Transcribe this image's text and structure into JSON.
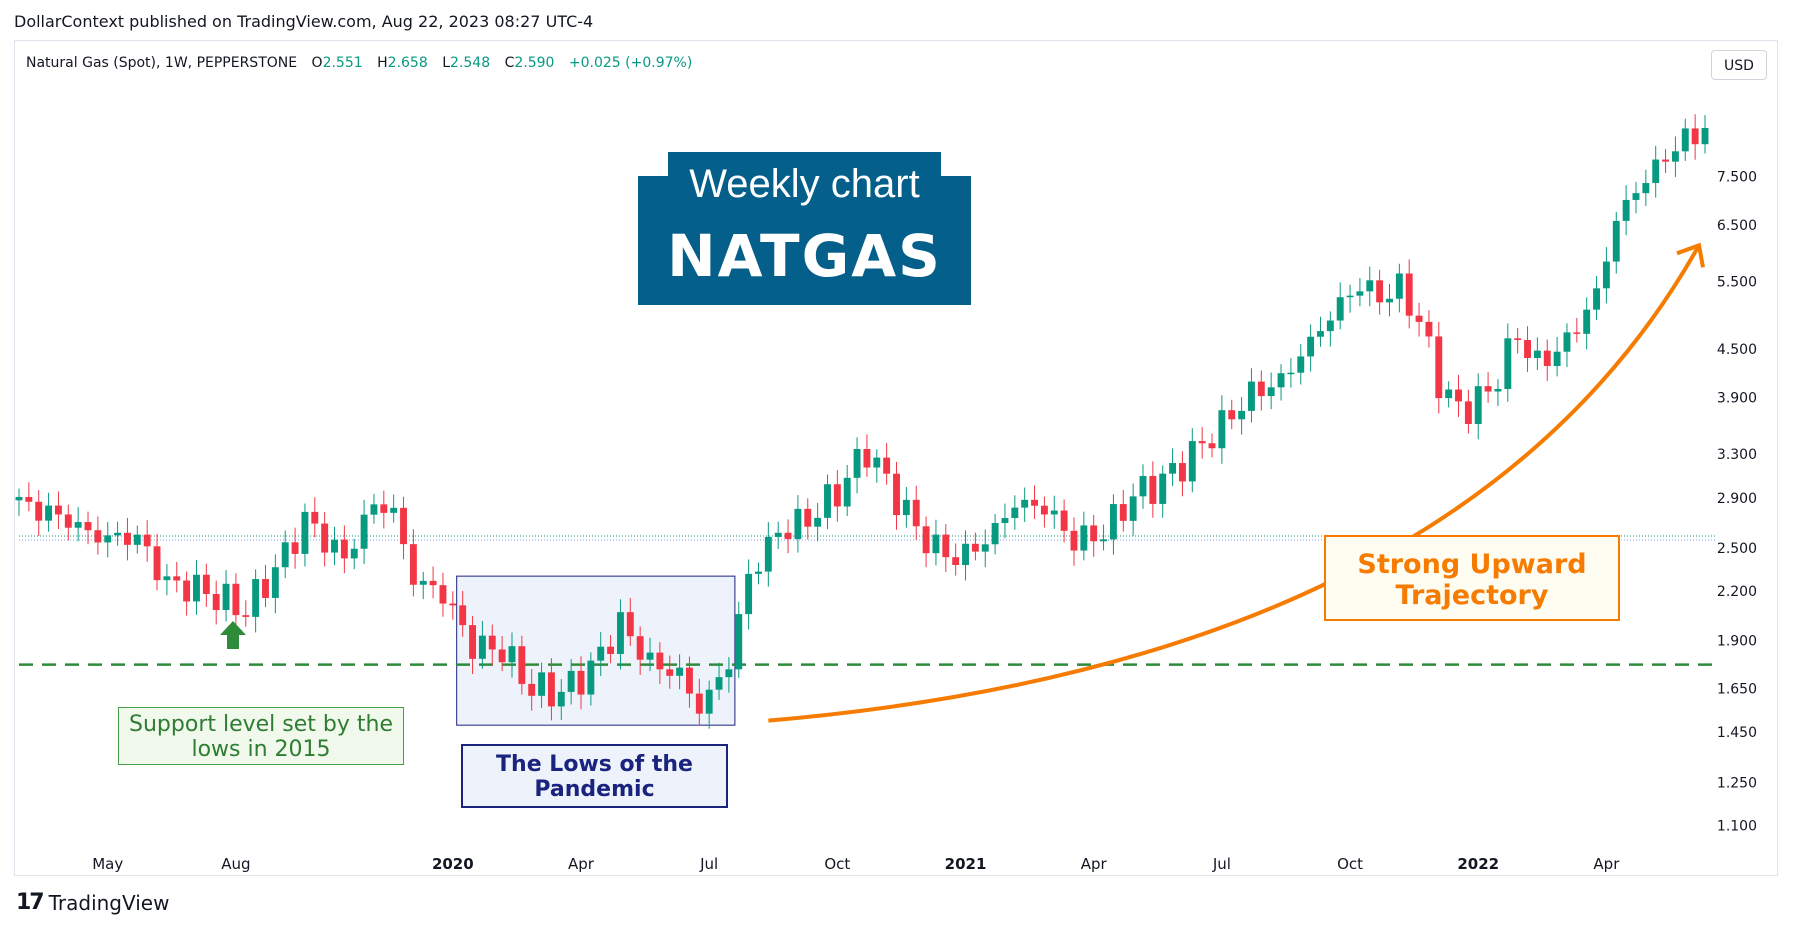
{
  "header": {
    "published_text": "DollarContext published on TradingView.com, Aug 22, 2023 08:27 UTC-4"
  },
  "legend": {
    "symbol": "Natural Gas (Spot), 1W, PEPPERSTONE",
    "o_label": "O",
    "o_value": "2.551",
    "h_label": "H",
    "h_value": "2.658",
    "l_label": "L",
    "l_value": "2.548",
    "c_label": "C",
    "c_value": "2.590",
    "change": "+0.025 (+0.97%)"
  },
  "currency": "USD",
  "title_box": {
    "line1": "Weekly chart",
    "line2": "NATGAS"
  },
  "notes": {
    "support": "Support level set by the lows in 2015",
    "pandemic": "The Lows of the Pandemic",
    "trend": "Strong Upward Trajectory"
  },
  "footer": {
    "brand": "TradingView",
    "brand_mark": "17"
  },
  "colors": {
    "up": "#089981",
    "down": "#f23645",
    "support_line": "#2e8b3a",
    "trend_arrow": "#f57c00",
    "title_bg": "#045f8a",
    "pandemic_fill": "#eef3fb",
    "pandemic_border": "#1a237e"
  },
  "chart_data": {
    "type": "candlestick",
    "y_scale": "log",
    "ylim": [
      1.02,
      11.2
    ],
    "y_ticks": [
      "7.500",
      "6.500",
      "5.500",
      "4.500",
      "3.900",
      "3.300",
      "2.900",
      "2.500",
      "2.200",
      "1.900",
      "1.650",
      "1.450",
      "1.250",
      "1.100"
    ],
    "x_ticks": [
      {
        "label": "May",
        "week": 9,
        "bold": false
      },
      {
        "label": "Aug",
        "week": 22,
        "bold": false
      },
      {
        "label": "2020",
        "week": 44,
        "bold": true
      },
      {
        "label": "Apr",
        "week": 57,
        "bold": false
      },
      {
        "label": "Jul",
        "week": 70,
        "bold": false
      },
      {
        "label": "Oct",
        "week": 83,
        "bold": false
      },
      {
        "label": "2021",
        "week": 96,
        "bold": true
      },
      {
        "label": "Apr",
        "week": 109,
        "bold": false
      },
      {
        "label": "Jul",
        "week": 122,
        "bold": false
      },
      {
        "label": "Oct",
        "week": 135,
        "bold": false
      },
      {
        "label": "2022",
        "week": 148,
        "bold": true
      },
      {
        "label": "Apr",
        "week": 161,
        "bold": false
      }
    ],
    "support_level": 1.77,
    "current_price_level": 2.59,
    "pandemic_range": {
      "week_start": 45,
      "week_end": 72,
      "high": 2.3,
      "low": 1.48
    },
    "trend_arrow": {
      "from": {
        "week": 76,
        "price": 1.5
      },
      "to": {
        "week": 171,
        "price": 5.6
      }
    },
    "ohlc_anchors": [
      {
        "week": 0,
        "close": 2.85
      },
      {
        "week": 4,
        "close": 2.75
      },
      {
        "week": 8,
        "close": 2.58
      },
      {
        "week": 12,
        "close": 2.58
      },
      {
        "week": 15,
        "close": 2.25
      },
      {
        "week": 18,
        "close": 2.22
      },
      {
        "week": 23,
        "close": 2.08
      },
      {
        "week": 27,
        "close": 2.45
      },
      {
        "week": 29,
        "close": 2.72
      },
      {
        "week": 33,
        "close": 2.42
      },
      {
        "week": 36,
        "close": 2.85
      },
      {
        "week": 38,
        "close": 2.78
      },
      {
        "week": 40,
        "close": 2.28
      },
      {
        "week": 43,
        "close": 2.18
      },
      {
        "week": 46,
        "close": 1.87
      },
      {
        "week": 49,
        "close": 1.85
      },
      {
        "week": 52,
        "close": 1.65
      },
      {
        "week": 55,
        "close": 1.63
      },
      {
        "week": 58,
        "close": 1.75
      },
      {
        "week": 61,
        "close": 2.0
      },
      {
        "week": 64,
        "close": 1.78
      },
      {
        "week": 67,
        "close": 1.72
      },
      {
        "week": 69,
        "close": 1.55
      },
      {
        "week": 72,
        "close": 1.78
      },
      {
        "week": 74,
        "close": 2.3
      },
      {
        "week": 77,
        "close": 2.62
      },
      {
        "week": 80,
        "close": 2.72
      },
      {
        "week": 83,
        "close": 2.95
      },
      {
        "week": 86,
        "close": 3.35
      },
      {
        "week": 89,
        "close": 2.9
      },
      {
        "week": 92,
        "close": 2.55
      },
      {
        "week": 95,
        "close": 2.42
      },
      {
        "week": 98,
        "close": 2.55
      },
      {
        "week": 101,
        "close": 2.85
      },
      {
        "week": 104,
        "close": 2.82
      },
      {
        "week": 107,
        "close": 2.55
      },
      {
        "week": 110,
        "close": 2.62
      },
      {
        "week": 113,
        "close": 2.92
      },
      {
        "week": 116,
        "close": 3.05
      },
      {
        "week": 119,
        "close": 3.3
      },
      {
        "week": 122,
        "close": 3.6
      },
      {
        "week": 125,
        "close": 3.95
      },
      {
        "week": 128,
        "close": 4.1
      },
      {
        "week": 131,
        "close": 4.6
      },
      {
        "week": 134,
        "close": 5.15
      },
      {
        "week": 136,
        "close": 5.45
      },
      {
        "week": 138,
        "close": 5.25
      },
      {
        "week": 140,
        "close": 5.4
      },
      {
        "week": 142,
        "close": 4.9
      },
      {
        "week": 144,
        "close": 4.1
      },
      {
        "week": 146,
        "close": 3.75
      },
      {
        "week": 149,
        "close": 3.95
      },
      {
        "week": 152,
        "close": 4.7
      },
      {
        "week": 154,
        "close": 4.3
      },
      {
        "week": 157,
        "close": 4.6
      },
      {
        "week": 160,
        "close": 5.3
      },
      {
        "week": 162,
        "close": 6.6
      },
      {
        "week": 164,
        "close": 7.2
      },
      {
        "week": 166,
        "close": 7.7
      },
      {
        "week": 168,
        "close": 8.2
      },
      {
        "week": 170,
        "close": 8.5
      },
      {
        "week": 171,
        "close": 8.7
      }
    ]
  }
}
